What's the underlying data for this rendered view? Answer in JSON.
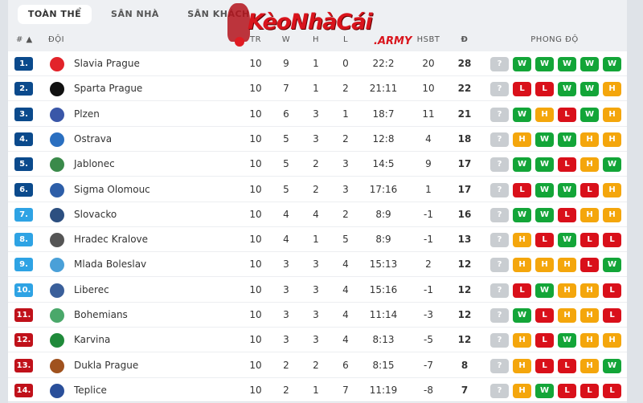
{
  "tabs": [
    {
      "label": "TOÀN THỂ",
      "active": true
    },
    {
      "label": "SÂN NHÀ",
      "active": false
    },
    {
      "label": "SÂN KHÁCH",
      "active": false
    }
  ],
  "watermark": {
    "main": "KèoNhàCái",
    "sub": ".ARMY"
  },
  "columns": {
    "rank": "# ▲",
    "team": "ĐỘI",
    "played": "TR",
    "won": "W",
    "draw": "H",
    "lost": "L",
    "hsbt": "HSBT",
    "points": "Đ",
    "form": "PHONG ĐỘ"
  },
  "colors": {
    "W": "#13a538",
    "H": "#f4a60c",
    "L": "#d9101a",
    "?": "#c9cdd1",
    "rank_top": "#0b4a8c",
    "rank_mid": "#2ea3e4",
    "rank_bottom": "#c0111a"
  },
  "rows": [
    {
      "rank": "1.",
      "team": "Slavia Prague",
      "tr": "10",
      "w": "9",
      "h": "1",
      "l": "0",
      "score": "22:2",
      "hsbt": "20",
      "pts": "28",
      "form": [
        "?",
        "W",
        "W",
        "W",
        "W",
        "W"
      ],
      "zone": "top",
      "logo": "#e2232a"
    },
    {
      "rank": "2.",
      "team": "Sparta Prague",
      "tr": "10",
      "w": "7",
      "h": "1",
      "l": "2",
      "score": "21:11",
      "hsbt": "10",
      "pts": "22",
      "form": [
        "?",
        "L",
        "L",
        "W",
        "W",
        "H"
      ],
      "zone": "top",
      "logo": "#111111"
    },
    {
      "rank": "3.",
      "team": "Plzen",
      "tr": "10",
      "w": "6",
      "h": "3",
      "l": "1",
      "score": "18:7",
      "hsbt": "11",
      "pts": "21",
      "form": [
        "?",
        "W",
        "H",
        "L",
        "W",
        "H"
      ],
      "zone": "top",
      "logo": "#3a57a8"
    },
    {
      "rank": "4.",
      "team": "Ostrava",
      "tr": "10",
      "w": "5",
      "h": "3",
      "l": "2",
      "score": "12:8",
      "hsbt": "4",
      "pts": "18",
      "form": [
        "?",
        "H",
        "W",
        "W",
        "H",
        "H"
      ],
      "zone": "top",
      "logo": "#2a6fc0"
    },
    {
      "rank": "5.",
      "team": "Jablonec",
      "tr": "10",
      "w": "5",
      "h": "2",
      "l": "3",
      "score": "14:5",
      "hsbt": "9",
      "pts": "17",
      "form": [
        "?",
        "W",
        "W",
        "L",
        "H",
        "W"
      ],
      "zone": "top",
      "logo": "#3a8a4a"
    },
    {
      "rank": "6.",
      "team": "Sigma Olomouc",
      "tr": "10",
      "w": "5",
      "h": "2",
      "l": "3",
      "score": "17:16",
      "hsbt": "1",
      "pts": "17",
      "form": [
        "?",
        "L",
        "W",
        "W",
        "L",
        "H"
      ],
      "zone": "top",
      "logo": "#2d5ea8"
    },
    {
      "rank": "7.",
      "team": "Slovacko",
      "tr": "10",
      "w": "4",
      "h": "4",
      "l": "2",
      "score": "8:9",
      "hsbt": "-1",
      "pts": "16",
      "form": [
        "?",
        "W",
        "W",
        "L",
        "H",
        "H"
      ],
      "zone": "mid",
      "logo": "#2c4f80"
    },
    {
      "rank": "8.",
      "team": "Hradec Kralove",
      "tr": "10",
      "w": "4",
      "h": "1",
      "l": "5",
      "score": "8:9",
      "hsbt": "-1",
      "pts": "13",
      "form": [
        "?",
        "H",
        "L",
        "W",
        "L",
        "L"
      ],
      "zone": "mid",
      "logo": "#555555"
    },
    {
      "rank": "9.",
      "team": "Mlada Boleslav",
      "tr": "10",
      "w": "3",
      "h": "3",
      "l": "4",
      "score": "15:13",
      "hsbt": "2",
      "pts": "12",
      "form": [
        "?",
        "H",
        "H",
        "H",
        "L",
        "W"
      ],
      "zone": "mid",
      "logo": "#4aa0d8"
    },
    {
      "rank": "10.",
      "team": "Liberec",
      "tr": "10",
      "w": "3",
      "h": "3",
      "l": "4",
      "score": "15:16",
      "hsbt": "-1",
      "pts": "12",
      "form": [
        "?",
        "L",
        "W",
        "H",
        "H",
        "L"
      ],
      "zone": "mid",
      "logo": "#3a5f9a"
    },
    {
      "rank": "11.",
      "team": "Bohemians",
      "tr": "10",
      "w": "3",
      "h": "3",
      "l": "4",
      "score": "11:14",
      "hsbt": "-3",
      "pts": "12",
      "form": [
        "?",
        "W",
        "L",
        "H",
        "H",
        "L"
      ],
      "zone": "bottom",
      "logo": "#4aa86a"
    },
    {
      "rank": "12.",
      "team": "Karvina",
      "tr": "10",
      "w": "3",
      "h": "3",
      "l": "4",
      "score": "8:13",
      "hsbt": "-5",
      "pts": "12",
      "form": [
        "?",
        "H",
        "L",
        "W",
        "H",
        "H"
      ],
      "zone": "bottom",
      "logo": "#1f8a3a"
    },
    {
      "rank": "13.",
      "team": "Dukla Prague",
      "tr": "10",
      "w": "2",
      "h": "2",
      "l": "6",
      "score": "8:15",
      "hsbt": "-7",
      "pts": "8",
      "form": [
        "?",
        "H",
        "L",
        "L",
        "H",
        "W"
      ],
      "zone": "bottom",
      "logo": "#a0521e"
    },
    {
      "rank": "14.",
      "team": "Teplice",
      "tr": "10",
      "w": "2",
      "h": "1",
      "l": "7",
      "score": "11:19",
      "hsbt": "-8",
      "pts": "7",
      "form": [
        "?",
        "H",
        "W",
        "L",
        "L",
        "L"
      ],
      "zone": "bottom",
      "logo": "#2a4f9a"
    }
  ]
}
